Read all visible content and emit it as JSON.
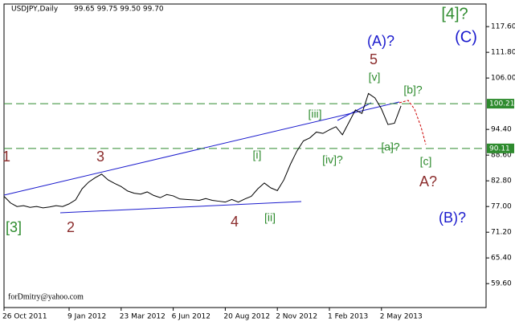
{
  "chart_data": {
    "type": "line",
    "title": "USDJPY,Daily",
    "subtitle": "99.65 99.75 99.50 99.70",
    "watermark": "forDmitry@yahoo.com",
    "categories": [
      "26 Oct 2011",
      null,
      null,
      null,
      null,
      null,
      null,
      null,
      null,
      null,
      "9 Jan 2012",
      null,
      null,
      null,
      null,
      null,
      null,
      null,
      "23 Mar 2012",
      null,
      null,
      null,
      null,
      null,
      null,
      null,
      "6 Jun 2012",
      null,
      null,
      null,
      null,
      null,
      null,
      null,
      "20 Aug 2012",
      null,
      null,
      null,
      null,
      null,
      null,
      null,
      "2 Nov 2012",
      null,
      null,
      null,
      null,
      null,
      null,
      null,
      "1 Feb 2013",
      null,
      null,
      null,
      null,
      null,
      null,
      null,
      "2 May 2013",
      null,
      null,
      null
    ],
    "series": [
      {
        "name": "USDJPY",
        "color": "#000000",
        "values": [
          79.3,
          77.8,
          77.0,
          77.2,
          76.8,
          77.0,
          76.7,
          76.9,
          77.2,
          77.0,
          77.6,
          78.5,
          81.0,
          82.5,
          83.5,
          84.3,
          83.0,
          82.2,
          81.5,
          80.5,
          80.0,
          79.8,
          80.3,
          79.5,
          79.0,
          79.7,
          79.4,
          78.7,
          78.6,
          78.5,
          78.4,
          78.8,
          78.4,
          78.2,
          78.0,
          78.6,
          78.0,
          78.7,
          79.3,
          81.0,
          82.3,
          81.2,
          80.6,
          83.0,
          86.5,
          89.5,
          91.8,
          92.5,
          93.8,
          93.5,
          94.3,
          95.0,
          93.2,
          96.0,
          98.8,
          98.0,
          102.5,
          101.5,
          99.0,
          95.5,
          95.8,
          99.7
        ]
      }
    ],
    "ylim": [
      54.2,
      122.7
    ],
    "yticks": [
      {
        "value": 117.6,
        "label": "117.60"
      },
      {
        "value": 111.8,
        "label": "111.80"
      },
      {
        "value": 106,
        "label": "106.00"
      },
      {
        "value": 94.4,
        "label": "94.40"
      },
      {
        "value": 88.6,
        "label": "88.60"
      },
      {
        "value": 82.8,
        "label": "82.80"
      },
      {
        "value": 77,
        "label": "77.00"
      },
      {
        "value": 71.2,
        "label": "71.20"
      },
      {
        "value": 65.4,
        "label": "65.40"
      },
      {
        "value": 59.6,
        "label": "59.60"
      }
    ],
    "levels": [
      {
        "value": 100.21,
        "label": "100.21",
        "color": "#2e8b2e"
      },
      {
        "value": 90.11,
        "label": "90.11",
        "color": "#2e8b2e"
      }
    ],
    "annotations": [
      {
        "text": "[4]?",
        "color": "#2e8b2e"
      },
      {
        "text": "(C)",
        "color": "#1a1acd"
      },
      {
        "text": "(A)?",
        "color": "#1a1acd"
      },
      {
        "text": "5",
        "color": "#8b2c2c"
      },
      {
        "text": "[v]",
        "color": "#2e8b2e"
      },
      {
        "text": "[b]?",
        "color": "#2e8b2e"
      },
      {
        "text": "[iii]",
        "color": "#2e8b2e"
      },
      {
        "text": "[iv]?",
        "color": "#2e8b2e"
      },
      {
        "text": "[a]?",
        "color": "#2e8b2e"
      },
      {
        "text": "[c]",
        "color": "#2e8b2e"
      },
      {
        "text": "A?",
        "color": "#8b2c2c"
      },
      {
        "text": "(B)?",
        "color": "#1a1acd"
      },
      {
        "text": "1",
        "color": "#8b2c2c"
      },
      {
        "text": "[3]",
        "color": "#2e8b2e"
      },
      {
        "text": "2",
        "color": "#8b2c2c"
      },
      {
        "text": "3",
        "color": "#8b2c2c"
      },
      {
        "text": "4",
        "color": "#8b2c2c"
      },
      {
        "text": "[i]",
        "color": "#2e8b2e"
      },
      {
        "text": "[ii]",
        "color": "#2e8b2e"
      }
    ]
  }
}
